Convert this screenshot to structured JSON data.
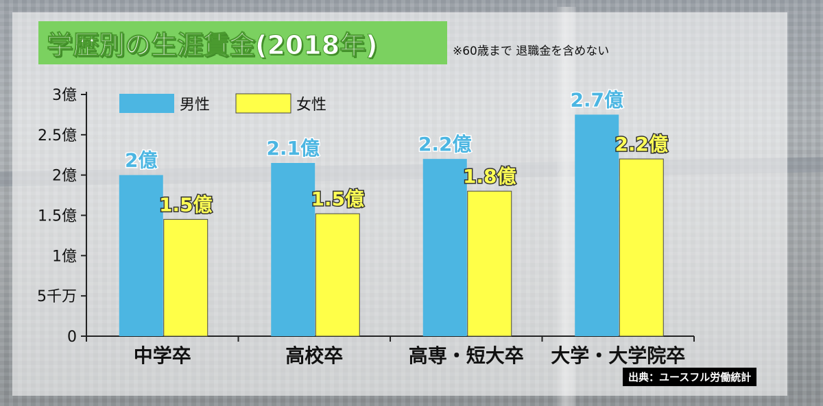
{
  "title": "学歴別の生涯賃金(2018年)",
  "note": "※60歳まで 退職金を含めない",
  "source": "出典：ユースフル労働統計",
  "colors": {
    "male": "#4cb6e2",
    "female": "#ffff48",
    "title_bg": "#7bd160"
  },
  "chart_data": {
    "type": "bar",
    "title": "学歴別の生涯賃金(2018年)",
    "categories": [
      "中学卒",
      "高校卒",
      "高専・短大卒",
      "大学・大学院卒"
    ],
    "series": [
      {
        "name": "男性",
        "values": [
          2.0,
          2.15,
          2.2,
          2.75
        ],
        "labels": [
          "2億",
          "2.1億",
          "2.2億",
          "2.7億"
        ]
      },
      {
        "name": "女性",
        "values": [
          1.45,
          1.52,
          1.8,
          2.2
        ],
        "labels": [
          "1.5億",
          "1.5億",
          "1.8億",
          "2.2億"
        ]
      }
    ],
    "yticks": [
      {
        "value": 0,
        "label": "0"
      },
      {
        "value": 0.5,
        "label": "5千万"
      },
      {
        "value": 1,
        "label": "1億"
      },
      {
        "value": 1.5,
        "label": "1.5億"
      },
      {
        "value": 2,
        "label": "2億"
      },
      {
        "value": 2.5,
        "label": "2.5億"
      },
      {
        "value": 3,
        "label": "3億"
      }
    ],
    "ylim": [
      0,
      3
    ],
    "xlabel": "",
    "ylabel": "",
    "legend_position": "top-left"
  }
}
